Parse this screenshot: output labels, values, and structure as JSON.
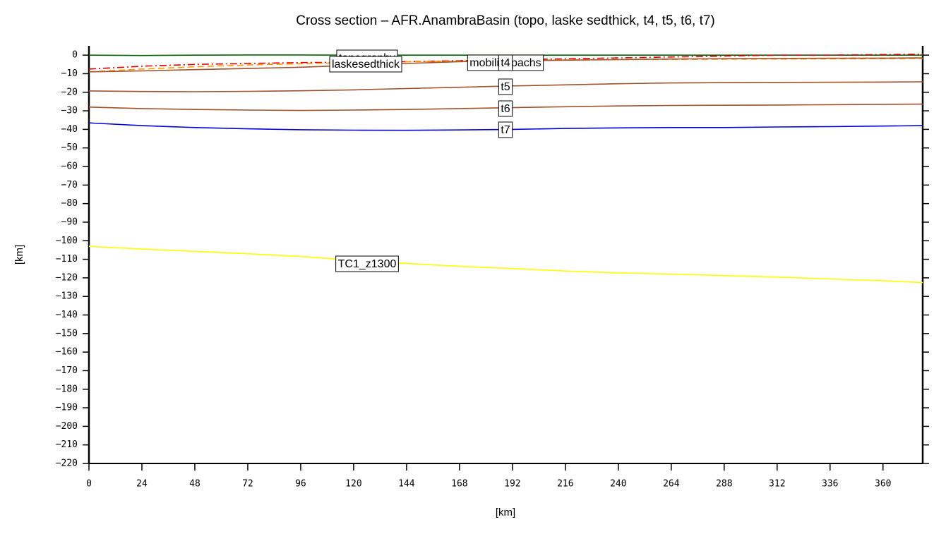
{
  "chart_data": {
    "type": "line",
    "title": "Cross section – AFR.AnambraBasin (topo, laske sedthick, t4, t5, t6, t7)",
    "x_label": "[km]",
    "y_label": "[km]",
    "x": [
      0,
      24,
      48,
      72,
      96,
      120,
      144,
      168,
      192,
      216,
      240,
      264,
      288,
      312,
      336,
      360,
      378
    ],
    "series": [
      {
        "name": "topography",
        "color": "#006400",
        "dash": "solid",
        "values": [
          0,
          -0.2,
          0,
          0.1,
          0.1,
          0,
          0,
          0,
          0,
          0,
          0,
          0,
          0,
          0,
          0,
          0,
          0
        ]
      },
      {
        "name": "laskesedthick",
        "color": "#e00000",
        "dash": "dashdot",
        "values": [
          -7.5,
          -6,
          -5,
          -4.5,
          -4,
          -3.8,
          -3.5,
          -3,
          -2.5,
          -2,
          -1.5,
          -1,
          -0.5,
          0,
          0,
          0.3,
          0.5
        ]
      },
      {
        "name": "mobilisopachs",
        "color": "#ff9900",
        "dash": "dashed",
        "values": [
          -9,
          -7.5,
          -6.3,
          -5.3,
          -4.6,
          -4,
          -3.6,
          -3.2,
          -2.9,
          -2.6,
          -2.4,
          -2.3,
          -2.2,
          -2.1,
          -2,
          -1.9,
          -1.8
        ]
      },
      {
        "name": "t4",
        "color": "#a0522d",
        "dash": "solid",
        "values": [
          -9,
          -8.5,
          -7.8,
          -7.2,
          -6.5,
          -5.5,
          -4.5,
          -3.5,
          -3,
          -2.7,
          -2.4,
          -2.1,
          -1.9,
          -1.8,
          -1.7,
          -1.6,
          -1.5
        ]
      },
      {
        "name": "t5",
        "color": "#a0522d",
        "dash": "solid",
        "values": [
          -19.3,
          -19.6,
          -19.7,
          -19.5,
          -19.2,
          -18.7,
          -18,
          -17.3,
          -16.6,
          -16,
          -15.4,
          -15,
          -14.8,
          -14.7,
          -14.6,
          -14.5,
          -14.4
        ]
      },
      {
        "name": "t6",
        "color": "#a0522d",
        "dash": "solid",
        "values": [
          -28,
          -28.8,
          -29.3,
          -29.6,
          -29.8,
          -29.6,
          -29.3,
          -28.8,
          -28.3,
          -27.8,
          -27.4,
          -27.1,
          -27,
          -26.9,
          -26.7,
          -26.5,
          -26.4
        ]
      },
      {
        "name": "t7",
        "color": "#0000dd",
        "dash": "solid",
        "values": [
          -36.5,
          -38,
          -39,
          -39.7,
          -40.2,
          -40.4,
          -40.5,
          -40.3,
          -40,
          -39.5,
          -39.2,
          -39,
          -39,
          -38.7,
          -38.5,
          -38.2,
          -38
        ]
      },
      {
        "name": "TC1_z1300",
        "color": "#ffff00",
        "dash": "solid",
        "values": [
          -103,
          -104.5,
          -105.7,
          -107,
          -108.5,
          -110.5,
          -112.2,
          -113.8,
          -115,
          -116.3,
          -117.3,
          -118,
          -118.8,
          -119.6,
          -120.6,
          -121.6,
          -122.5
        ]
      }
    ],
    "xlim": [
      0,
      378
    ],
    "ylim": [
      -220,
      5
    ],
    "xticks": [
      0,
      24,
      48,
      72,
      96,
      120,
      144,
      168,
      192,
      216,
      240,
      264,
      288,
      312,
      336,
      360
    ],
    "yticks": [
      0,
      {
        "value": -10,
        "label": "−10"
      },
      {
        "value": -20,
        "label": "−20"
      },
      {
        "value": -30,
        "label": "−30"
      },
      {
        "value": -40,
        "label": "−40"
      },
      {
        "value": -50,
        "label": "−50"
      },
      {
        "value": -60,
        "label": "−60"
      },
      {
        "value": -70,
        "label": "−70"
      },
      {
        "value": -80,
        "label": "−80"
      },
      {
        "value": -90,
        "label": "−90"
      },
      {
        "value": -100,
        "label": "−100"
      },
      {
        "value": -110,
        "label": "−110"
      },
      {
        "value": -120,
        "label": "−120"
      },
      {
        "value": -130,
        "label": "−130"
      },
      {
        "value": -140,
        "label": "−140"
      },
      {
        "value": -150,
        "label": "−150"
      },
      {
        "value": -160,
        "label": "−160"
      },
      {
        "value": -170,
        "label": "−170"
      },
      {
        "value": -180,
        "label": "−180"
      },
      {
        "value": -190,
        "label": "−190"
      },
      {
        "value": -200,
        "label": "−200"
      },
      {
        "value": -210,
        "label": "−210"
      },
      {
        "value": -220,
        "label": "−220"
      }
    ],
    "grid": false
  }
}
